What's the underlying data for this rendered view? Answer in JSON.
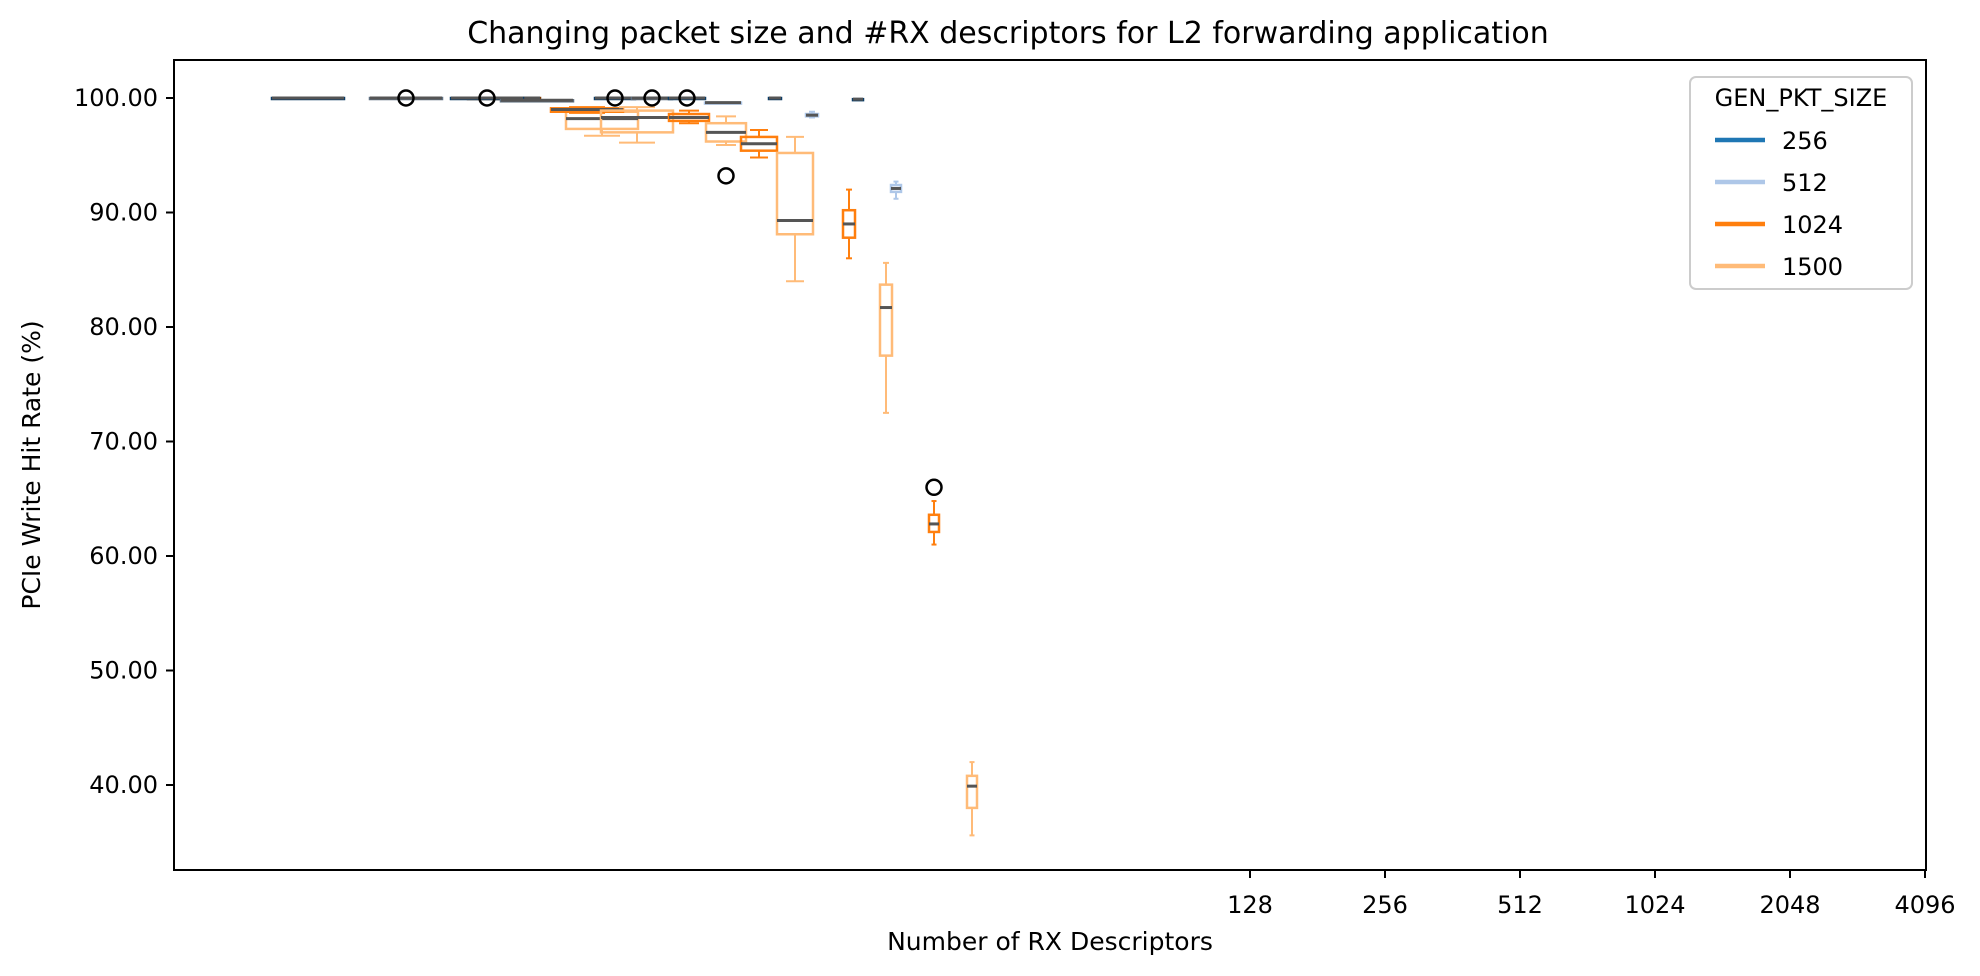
{
  "chart_data": {
    "type": "box",
    "title": "Changing packet size and #RX descriptors for L2 forwarding application",
    "xlabel": "Number of RX Descriptors",
    "ylabel": "PCIe Write Hit Rate (%)",
    "ylim": [
      33,
      104
    ],
    "yticks": [
      "40.00",
      "50.00",
      "60.00",
      "70.00",
      "80.00",
      "90.00",
      "100.00"
    ],
    "xticks": [
      "128",
      "256",
      "512",
      "1024",
      "2048",
      "4096"
    ],
    "grid": false,
    "legend": {
      "title": "GEN_PKT_SIZE",
      "placement": "top-right",
      "entries": [
        {
          "label": "256",
          "color": "#1f77b4"
        },
        {
          "label": "512",
          "color": "#aec7e8"
        },
        {
          "label": "1024",
          "color": "#ff7f0e"
        },
        {
          "label": "1500",
          "color": "#ffbb78"
        }
      ]
    },
    "boxes": [
      {
        "descriptors": 128,
        "series": "256",
        "color": "#0b3c66",
        "min": 100,
        "q1": 100,
        "median": 100,
        "q3": 100,
        "max": 100,
        "outliers": []
      },
      {
        "descriptors": 128,
        "series": "512",
        "color": "#5e6f80",
        "min": 100,
        "q1": 100,
        "median": 100,
        "q3": 100,
        "max": 100,
        "outliers": [
          100
        ]
      },
      {
        "descriptors": 128,
        "series": "1024",
        "color": "#7a3a06",
        "min": 100,
        "q1": 100,
        "median": 100,
        "q3": 100,
        "max": 100,
        "outliers": []
      },
      {
        "descriptors": 128,
        "series": "1500",
        "color": "#ffbb78",
        "min": 96.7,
        "q1": 97.3,
        "median": 98.2,
        "q3": 98.8,
        "max": 99.0,
        "outliers": []
      },
      {
        "descriptors": 256,
        "series": "256",
        "color": "#0b3c66",
        "min": 100,
        "q1": 100,
        "median": 100,
        "q3": 100,
        "max": 100,
        "outliers": [
          100
        ]
      },
      {
        "descriptors": 256,
        "series": "512",
        "color": "#5e6f80",
        "min": 99.8,
        "q1": 99.8,
        "median": 99.8,
        "q3": 99.8,
        "max": 99.8,
        "outliers": []
      },
      {
        "descriptors": 256,
        "series": "1024",
        "color": "#ff7f0e",
        "min": 98.7,
        "q1": 98.8,
        "median": 99.0,
        "q3": 99.1,
        "max": 99.2,
        "outliers": []
      },
      {
        "descriptors": 256,
        "series": "1500",
        "color": "#ffbb78",
        "min": 96.1,
        "q1": 97.0,
        "median": 98.3,
        "q3": 98.9,
        "max": 99.2,
        "outliers": []
      },
      {
        "descriptors": 512,
        "series": "256",
        "color": "#0b3c66",
        "min": 100,
        "q1": 100,
        "median": 100,
        "q3": 100,
        "max": 100,
        "outliers": [
          100
        ]
      },
      {
        "descriptors": 512,
        "series": "512",
        "color": "#5e6f80",
        "min": 100,
        "q1": 100,
        "median": 100,
        "q3": 100,
        "max": 100,
        "outliers": [
          100
        ]
      },
      {
        "descriptors": 512,
        "series": "1024",
        "color": "#ff7f0e",
        "min": 97.8,
        "q1": 98.0,
        "median": 98.3,
        "q3": 98.6,
        "max": 98.9,
        "outliers": []
      },
      {
        "descriptors": 512,
        "series": "1500",
        "color": "#ffbb78",
        "min": 95.9,
        "q1": 96.2,
        "median": 97.0,
        "q3": 97.8,
        "max": 98.4,
        "outliers": [
          93.2
        ]
      },
      {
        "descriptors": 1024,
        "series": "256",
        "color": "#0b3c66",
        "min": 100,
        "q1": 100,
        "median": 100,
        "q3": 100,
        "max": 100,
        "outliers": [
          100
        ]
      },
      {
        "descriptors": 1024,
        "series": "512",
        "color": "#aec7e8",
        "min": 99.6,
        "q1": 99.6,
        "median": 99.6,
        "q3": 99.6,
        "max": 99.6,
        "outliers": []
      },
      {
        "descriptors": 1024,
        "series": "1024",
        "color": "#ff7f0e",
        "min": 94.8,
        "q1": 95.4,
        "median": 96.0,
        "q3": 96.6,
        "max": 97.2,
        "outliers": []
      },
      {
        "descriptors": 1024,
        "series": "1500",
        "color": "#ffbb78",
        "min": 84.0,
        "q1": 88.1,
        "median": 89.3,
        "q3": 95.2,
        "max": 96.6,
        "outliers": []
      },
      {
        "descriptors": 2048,
        "series": "256",
        "color": "#0b3c66",
        "min": 100,
        "q1": 100,
        "median": 100,
        "q3": 100,
        "max": 100,
        "outliers": []
      },
      {
        "descriptors": 2048,
        "series": "512",
        "color": "#aec7e8",
        "min": 98.3,
        "q1": 98.4,
        "median": 98.5,
        "q3": 98.6,
        "max": 98.8,
        "outliers": []
      },
      {
        "descriptors": 2048,
        "series": "1024",
        "color": "#ff7f0e",
        "min": 86.0,
        "q1": 87.8,
        "median": 89.0,
        "q3": 90.2,
        "max": 92.0,
        "outliers": []
      },
      {
        "descriptors": 2048,
        "series": "1500",
        "color": "#ffbb78",
        "min": 72.5,
        "q1": 77.5,
        "median": 81.7,
        "q3": 83.7,
        "max": 85.6,
        "outliers": []
      },
      {
        "descriptors": 4096,
        "series": "256",
        "color": "#0b3c66",
        "min": 99.9,
        "q1": 99.9,
        "median": 99.9,
        "q3": 99.9,
        "max": 99.9,
        "outliers": []
      },
      {
        "descriptors": 4096,
        "series": "512",
        "color": "#aec7e8",
        "min": 91.2,
        "q1": 91.8,
        "median": 92.1,
        "q3": 92.4,
        "max": 92.7,
        "outliers": []
      },
      {
        "descriptors": 4096,
        "series": "1024",
        "color": "#ff7f0e",
        "min": 61.0,
        "q1": 62.1,
        "median": 62.8,
        "q3": 63.6,
        "max": 64.8,
        "outliers": [
          66.0
        ]
      },
      {
        "descriptors": 4096,
        "series": "1500",
        "color": "#ffbb78",
        "min": 35.6,
        "q1": 38.0,
        "median": 39.9,
        "q3": 40.8,
        "max": 42.0,
        "outliers": []
      }
    ]
  }
}
